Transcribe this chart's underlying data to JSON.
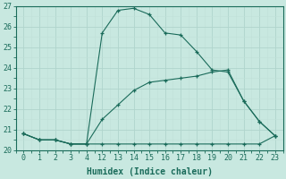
{
  "title": "",
  "xlabel": "Humidex (Indice chaleur)",
  "ylabel": "",
  "background_color": "#c8e8e0",
  "grid_color_major": "#b0d4cc",
  "grid_color_minor": "#c0e0d8",
  "line_color": "#1a6b5a",
  "marker": "+",
  "ylim": [
    20,
    27
  ],
  "yticks": [
    20,
    21,
    22,
    23,
    24,
    25,
    26,
    27
  ],
  "x_labels": [
    "0",
    "1",
    "2",
    "3",
    "4",
    "12",
    "13",
    "14",
    "15",
    "16",
    "17",
    "18",
    "19",
    "20",
    "21",
    "22",
    "23"
  ],
  "line1_y": [
    20.8,
    20.5,
    20.5,
    20.3,
    20.3,
    20.3,
    20.3,
    20.3,
    20.3,
    20.3,
    20.3,
    20.3,
    20.3,
    20.3,
    20.3,
    20.3,
    20.7
  ],
  "line2_y": [
    20.8,
    20.5,
    20.5,
    20.3,
    20.3,
    21.5,
    22.2,
    22.9,
    23.3,
    23.4,
    23.5,
    23.6,
    23.8,
    23.9,
    22.4,
    21.4,
    20.7
  ],
  "line3_y": [
    20.8,
    20.5,
    20.5,
    20.3,
    20.3,
    25.7,
    26.8,
    26.9,
    26.6,
    25.7,
    25.6,
    24.8,
    23.9,
    23.8,
    22.4,
    21.4,
    20.7
  ],
  "xlabel_fontsize": 7,
  "tick_fontsize": 6
}
